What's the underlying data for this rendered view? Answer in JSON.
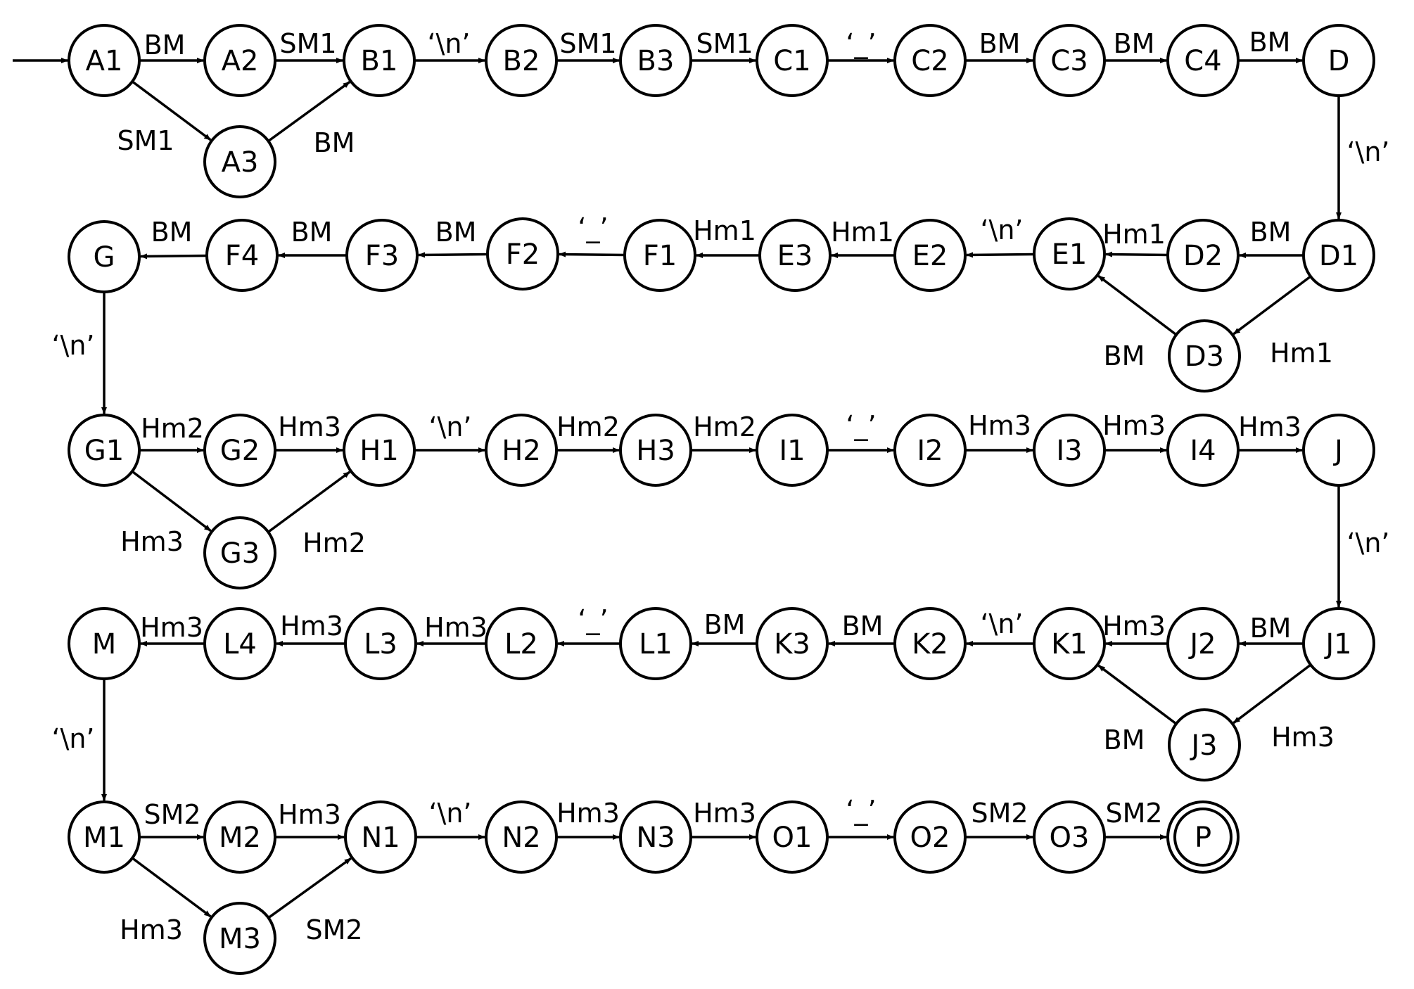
{
  "nodes": [
    {
      "id": "A1",
      "label": "A1"
    },
    {
      "id": "A2",
      "label": "A2"
    },
    {
      "id": "A3",
      "label": "A3"
    },
    {
      "id": "B1",
      "label": "B1"
    },
    {
      "id": "B2",
      "label": "B2"
    },
    {
      "id": "B3",
      "label": "B3"
    },
    {
      "id": "C1",
      "label": "C1"
    },
    {
      "id": "C2",
      "label": "C2"
    },
    {
      "id": "C3",
      "label": "C3"
    },
    {
      "id": "C4",
      "label": "C4"
    },
    {
      "id": "D",
      "label": "D"
    },
    {
      "id": "D1",
      "label": "D1"
    },
    {
      "id": "D2",
      "label": "D2"
    },
    {
      "id": "D3",
      "label": "D3"
    },
    {
      "id": "E1",
      "label": "E1"
    },
    {
      "id": "E2",
      "label": "E2"
    },
    {
      "id": "E3",
      "label": "E3"
    },
    {
      "id": "F1",
      "label": "F1"
    },
    {
      "id": "F2",
      "label": "F2"
    },
    {
      "id": "F3",
      "label": "F3"
    },
    {
      "id": "F4",
      "label": "F4"
    },
    {
      "id": "G",
      "label": "G"
    },
    {
      "id": "G1",
      "label": "G1"
    },
    {
      "id": "G2",
      "label": "G2"
    },
    {
      "id": "G3",
      "label": "G3"
    },
    {
      "id": "H1",
      "label": "H1"
    },
    {
      "id": "H2",
      "label": "H2"
    },
    {
      "id": "H3",
      "label": "H3"
    },
    {
      "id": "I1",
      "label": "I1"
    },
    {
      "id": "I2",
      "label": "I2"
    },
    {
      "id": "I3",
      "label": "I3"
    },
    {
      "id": "I4",
      "label": "I4"
    },
    {
      "id": "J",
      "label": "J"
    },
    {
      "id": "J1",
      "label": "J1"
    },
    {
      "id": "J2",
      "label": "J2"
    },
    {
      "id": "J3",
      "label": "J3"
    },
    {
      "id": "K1",
      "label": "K1"
    },
    {
      "id": "K2",
      "label": "K2"
    },
    {
      "id": "K3",
      "label": "K3"
    },
    {
      "id": "L1",
      "label": "L1"
    },
    {
      "id": "L2",
      "label": "L2"
    },
    {
      "id": "L3",
      "label": "L3"
    },
    {
      "id": "L4",
      "label": "L4"
    },
    {
      "id": "M",
      "label": "M"
    },
    {
      "id": "M1",
      "label": "M1"
    },
    {
      "id": "M2",
      "label": "M2"
    },
    {
      "id": "M3",
      "label": "M3"
    },
    {
      "id": "N1",
      "label": "N1"
    },
    {
      "id": "N2",
      "label": "N2"
    },
    {
      "id": "N3",
      "label": "N3"
    },
    {
      "id": "O1",
      "label": "O1"
    },
    {
      "id": "O2",
      "label": "O2"
    },
    {
      "id": "O3",
      "label": "O3"
    },
    {
      "id": "P",
      "label": "P",
      "accepting": true
    }
  ],
  "start_node": "A1",
  "edges": [
    {
      "from": "A1",
      "to": "A2",
      "label": "BM"
    },
    {
      "from": "A2",
      "to": "B1",
      "label": "SM1"
    },
    {
      "from": "A1",
      "to": "A3",
      "label": "SM1"
    },
    {
      "from": "A3",
      "to": "B1",
      "label": "BM"
    },
    {
      "from": "B1",
      "to": "B2",
      "label": "‘\\n’"
    },
    {
      "from": "B2",
      "to": "B3",
      "label": "SM1"
    },
    {
      "from": "B3",
      "to": "C1",
      "label": "SM1"
    },
    {
      "from": "C1",
      "to": "C2",
      "label": "‘_’"
    },
    {
      "from": "C2",
      "to": "C3",
      "label": "BM"
    },
    {
      "from": "C3",
      "to": "C4",
      "label": "BM"
    },
    {
      "from": "C4",
      "to": "D",
      "label": "BM"
    },
    {
      "from": "D",
      "to": "D1",
      "label": "‘\\n’"
    },
    {
      "from": "D1",
      "to": "D2",
      "label": "BM"
    },
    {
      "from": "D1",
      "to": "D3",
      "label": "Hm1"
    },
    {
      "from": "D2",
      "to": "E1",
      "label": "Hm1"
    },
    {
      "from": "D3",
      "to": "E1",
      "label": "BM"
    },
    {
      "from": "E1",
      "to": "E2",
      "label": "‘\\n’"
    },
    {
      "from": "E2",
      "to": "E3",
      "label": "Hm1"
    },
    {
      "from": "E3",
      "to": "F1",
      "label": "Hm1"
    },
    {
      "from": "F1",
      "to": "F2",
      "label": "‘_’"
    },
    {
      "from": "F2",
      "to": "F3",
      "label": "BM"
    },
    {
      "from": "F3",
      "to": "F4",
      "label": "BM"
    },
    {
      "from": "F4",
      "to": "G",
      "label": "BM"
    },
    {
      "from": "G",
      "to": "G1",
      "label": "‘\\n’"
    },
    {
      "from": "G1",
      "to": "G2",
      "label": "Hm2"
    },
    {
      "from": "G2",
      "to": "H1",
      "label": "Hm3"
    },
    {
      "from": "G1",
      "to": "G3",
      "label": "Hm3"
    },
    {
      "from": "G3",
      "to": "H1",
      "label": "Hm2"
    },
    {
      "from": "H1",
      "to": "H2",
      "label": "‘\\n’"
    },
    {
      "from": "H2",
      "to": "H3",
      "label": "Hm2"
    },
    {
      "from": "H3",
      "to": "I1",
      "label": "Hm2"
    },
    {
      "from": "I1",
      "to": "I2",
      "label": "‘_’"
    },
    {
      "from": "I2",
      "to": "I3",
      "label": "Hm3"
    },
    {
      "from": "I3",
      "to": "I4",
      "label": "Hm3"
    },
    {
      "from": "I4",
      "to": "J",
      "label": "Hm3"
    },
    {
      "from": "J",
      "to": "J1",
      "label": "‘\\n’"
    },
    {
      "from": "J1",
      "to": "J2",
      "label": "BM"
    },
    {
      "from": "J1",
      "to": "J3",
      "label": "Hm3"
    },
    {
      "from": "J2",
      "to": "K1",
      "label": "Hm3"
    },
    {
      "from": "J3",
      "to": "K1",
      "label": "BM"
    },
    {
      "from": "K1",
      "to": "K2",
      "label": "‘\\n’"
    },
    {
      "from": "K2",
      "to": "K3",
      "label": "BM"
    },
    {
      "from": "K3",
      "to": "L1",
      "label": "BM"
    },
    {
      "from": "L1",
      "to": "L2",
      "label": "‘_’"
    },
    {
      "from": "L2",
      "to": "L3",
      "label": "Hm3"
    },
    {
      "from": "L3",
      "to": "L4",
      "label": "Hm3"
    },
    {
      "from": "L4",
      "to": "M",
      "label": "Hm3"
    },
    {
      "from": "M",
      "to": "M1",
      "label": "‘\\n’"
    },
    {
      "from": "M1",
      "to": "M2",
      "label": "SM2"
    },
    {
      "from": "M2",
      "to": "N1",
      "label": "Hm3"
    },
    {
      "from": "M1",
      "to": "M3",
      "label": "Hm3"
    },
    {
      "from": "M3",
      "to": "N1",
      "label": "SM2"
    },
    {
      "from": "N1",
      "to": "N2",
      "label": "‘\\n’"
    },
    {
      "from": "N2",
      "to": "N3",
      "label": "Hm3"
    },
    {
      "from": "N3",
      "to": "O1",
      "label": "Hm3"
    },
    {
      "from": "O1",
      "to": "O2",
      "label": "‘_’"
    },
    {
      "from": "O2",
      "to": "O3",
      "label": "SM2"
    },
    {
      "from": "O3",
      "to": "P",
      "label": "SM2"
    }
  ]
}
